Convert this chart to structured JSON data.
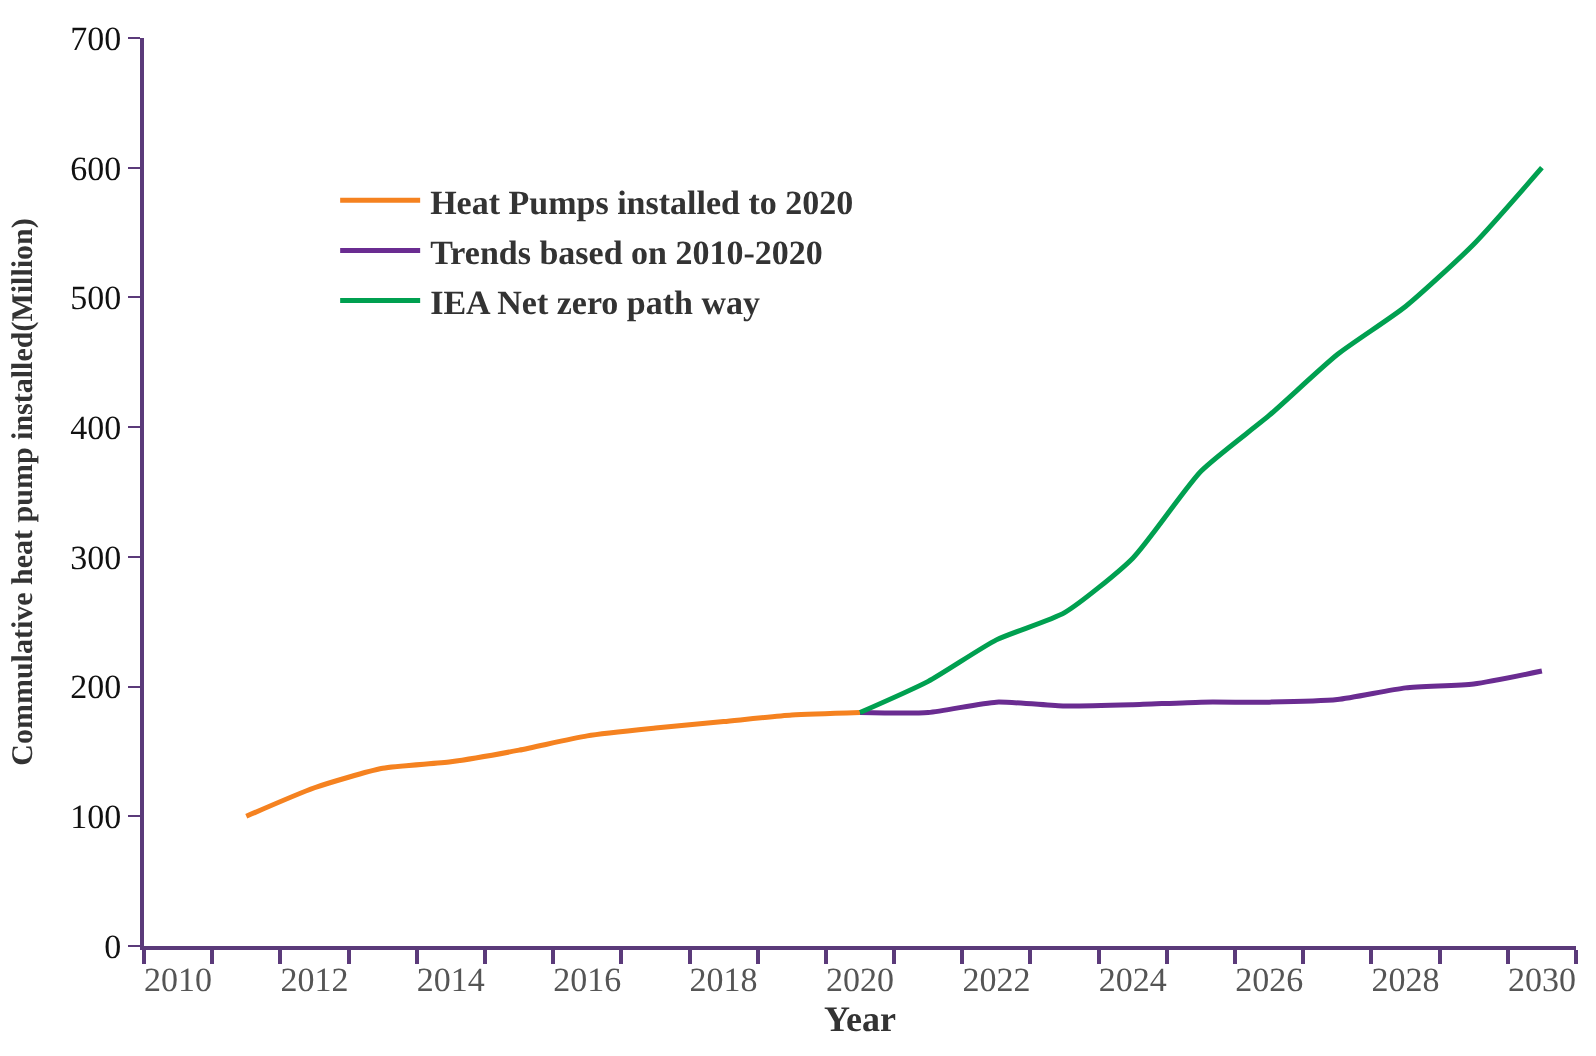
{
  "chart_data": {
    "type": "line",
    "xlabel": "Year",
    "ylabel": "Commulative heat pump installed(Million)",
    "x": [
      2011,
      2012,
      2013,
      2014,
      2015,
      2016,
      2017,
      2018,
      2019,
      2020,
      2021,
      2022,
      2023,
      2024,
      2025,
      2026,
      2027,
      2028,
      2029,
      2030
    ],
    "series": [
      {
        "name": "Heat Pumps installed to 2020",
        "color": "#f58220",
        "values": [
          100,
          122,
          137,
          142,
          151,
          162,
          168,
          173,
          178,
          180,
          null,
          null,
          null,
          null,
          null,
          null,
          null,
          null,
          null,
          null
        ]
      },
      {
        "name": "Trends based on 2010-2020",
        "color": "#6a2c91",
        "values": [
          null,
          null,
          null,
          null,
          null,
          null,
          null,
          null,
          null,
          180,
          180,
          188,
          185,
          186,
          188,
          188,
          190,
          199,
          202,
          212
        ]
      },
      {
        "name": "IEA Net zero path way",
        "color": "#00a050",
        "values": [
          null,
          null,
          null,
          null,
          null,
          null,
          null,
          null,
          null,
          180,
          204,
          236,
          257,
          299,
          366,
          409,
          456,
          493,
          541,
          600
        ]
      }
    ],
    "xlim": [
      2009.5,
      2030.5
    ],
    "xticks": [
      {
        "value": 2009.5,
        "label": null
      },
      2010,
      {
        "value": 2010.5,
        "label": null
      },
      {
        "value": 2011.5,
        "label": null
      },
      2012,
      {
        "value": 2012.5,
        "label": null
      },
      {
        "value": 2013.5,
        "label": null
      },
      2014,
      {
        "value": 2014.5,
        "label": null
      },
      {
        "value": 2015.5,
        "label": null
      },
      2016,
      {
        "value": 2016.5,
        "label": null
      },
      {
        "value": 2017.5,
        "label": null
      },
      2018,
      {
        "value": 2018.5,
        "label": null
      },
      {
        "value": 2019.5,
        "label": null
      },
      2020,
      {
        "value": 2020.5,
        "label": null
      },
      {
        "value": 2021.5,
        "label": null
      },
      2022,
      {
        "value": 2022.5,
        "label": null
      },
      {
        "value": 2023.5,
        "label": null
      },
      2024,
      {
        "value": 2024.5,
        "label": null
      },
      {
        "value": 2025.5,
        "label": null
      },
      2026,
      {
        "value": 2026.5,
        "label": null
      },
      {
        "value": 2027.5,
        "label": null
      },
      2028,
      {
        "value": 2028.5,
        "label": null
      },
      {
        "value": 2029.5,
        "label": null
      },
      2030,
      {
        "value": 2030.5,
        "label": null
      }
    ],
    "ylim": [
      0,
      700
    ],
    "yticks": [
      0,
      100,
      200,
      300,
      400,
      500,
      600,
      700
    ],
    "legend": "top left",
    "marker": "none",
    "line_style": "solid"
  }
}
